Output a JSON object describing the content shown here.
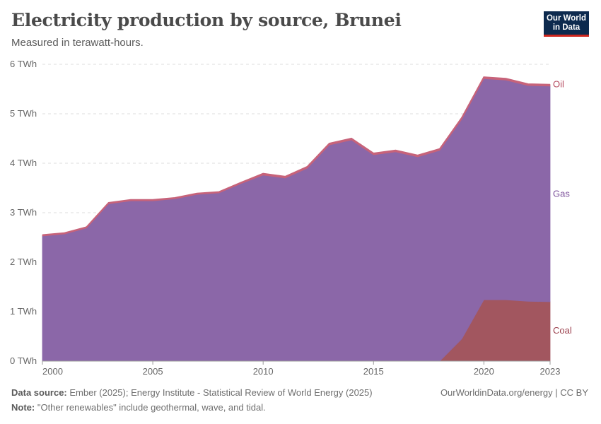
{
  "header": {
    "title": "Electricity production by source, Brunei",
    "subtitle": "Measured in terawatt-hours."
  },
  "logo": {
    "line1": "Our World",
    "line2": "in Data"
  },
  "footer": {
    "source_label": "Data source:",
    "source_text": "Ember (2025); Energy Institute - Statistical Review of World Energy (2025)",
    "credit": "OurWorldinData.org/energy | CC BY",
    "note_label": "Note:",
    "note_text": "\"Other renewables\" include geothermal, wave, and tidal."
  },
  "chart_data": {
    "type": "area",
    "stacked": true,
    "title": "Electricity production by source, Brunei",
    "subtitle": "Measured in terawatt-hours.",
    "x": [
      2000,
      2001,
      2002,
      2003,
      2004,
      2005,
      2006,
      2007,
      2008,
      2009,
      2010,
      2011,
      2012,
      2013,
      2014,
      2015,
      2016,
      2017,
      2018,
      2019,
      2020,
      2021,
      2022,
      2023
    ],
    "xlim": [
      2000,
      2023
    ],
    "ylim": [
      0,
      6
    ],
    "yticks": [
      0,
      1,
      2,
      3,
      4,
      5,
      6
    ],
    "ytick_labels": [
      "0 TWh",
      "1 TWh",
      "2 TWh",
      "3 TWh",
      "4 TWh",
      "5 TWh",
      "6 TWh"
    ],
    "xticks": [
      2000,
      2005,
      2010,
      2015,
      2020,
      2023
    ],
    "xtick_labels": [
      "2000",
      "2005",
      "2010",
      "2015",
      "2020",
      "2023"
    ],
    "series": [
      {
        "name": "Coal",
        "color": "#a2565f",
        "values": [
          0,
          0,
          0,
          0,
          0,
          0,
          0,
          0,
          0,
          0,
          0,
          0,
          0,
          0,
          0,
          0,
          0,
          0,
          0,
          0.45,
          1.24,
          1.24,
          1.21,
          1.2
        ]
      },
      {
        "name": "Gas",
        "color": "#8b67a8",
        "values": [
          2.53,
          2.57,
          2.69,
          3.18,
          3.24,
          3.24,
          3.28,
          3.37,
          3.4,
          3.59,
          3.76,
          3.7,
          3.9,
          4.37,
          4.47,
          4.17,
          4.23,
          4.13,
          4.26,
          4.44,
          4.47,
          4.44,
          4.36,
          4.36
        ]
      },
      {
        "name": "Oil",
        "color": "#c7637a",
        "values": [
          0.02,
          0.02,
          0.02,
          0.02,
          0.02,
          0.02,
          0.02,
          0.02,
          0.02,
          0.02,
          0.03,
          0.03,
          0.03,
          0.03,
          0.03,
          0.03,
          0.03,
          0.03,
          0.03,
          0.03,
          0.03,
          0.03,
          0.03,
          0.03
        ]
      }
    ],
    "legend_position": "right, inline labels",
    "grid": "horizontal dashed"
  }
}
